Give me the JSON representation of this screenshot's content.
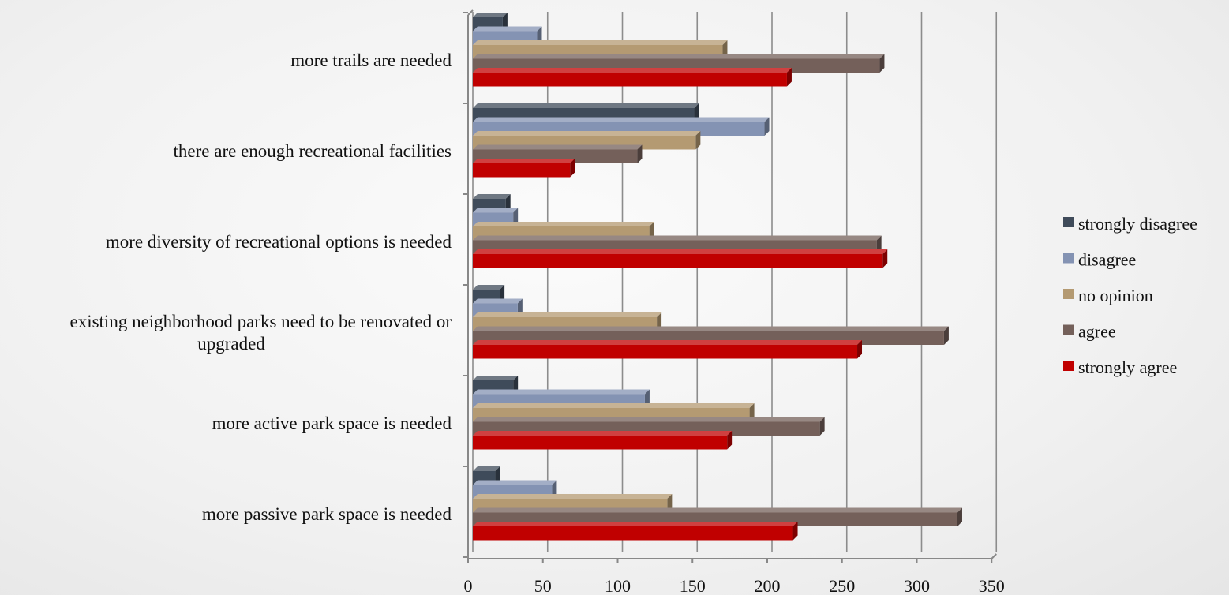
{
  "chart_data": {
    "type": "bar",
    "orientation": "horizontal",
    "title": "",
    "xlabel": "",
    "ylabel": "",
    "xlim": [
      0,
      350
    ],
    "x_ticks": [
      0,
      50,
      100,
      150,
      200,
      250,
      300,
      350
    ],
    "grid": true,
    "legend_position": "right",
    "categories": [
      {
        "lines": [
          "more trails are needed"
        ]
      },
      {
        "lines": [
          "there are enough recreational facilities"
        ]
      },
      {
        "lines": [
          "more diversity of recreational options is needed"
        ]
      },
      {
        "lines": [
          "existing neighborhood parks need to be renovated or",
          "upgraded"
        ]
      },
      {
        "lines": [
          "more active park space is needed"
        ]
      },
      {
        "lines": [
          "more passive park space is needed"
        ]
      }
    ],
    "series": [
      {
        "name": "strongly disagree",
        "color": "#3f4b5a",
        "values": [
          20,
          148,
          22,
          18,
          27,
          15
        ]
      },
      {
        "name": "disagree",
        "color": "#8493b3",
        "values": [
          43,
          195,
          27,
          30,
          115,
          53
        ]
      },
      {
        "name": "no opinion",
        "color": "#b49a72",
        "values": [
          167,
          149,
          118,
          123,
          185,
          130
        ]
      },
      {
        "name": "agree",
        "color": "#74605a",
        "values": [
          272,
          110,
          270,
          315,
          232,
          324
        ]
      },
      {
        "name": "strongly agree",
        "color": "#c00000",
        "values": [
          210,
          65,
          274,
          257,
          170,
          214
        ]
      }
    ]
  }
}
